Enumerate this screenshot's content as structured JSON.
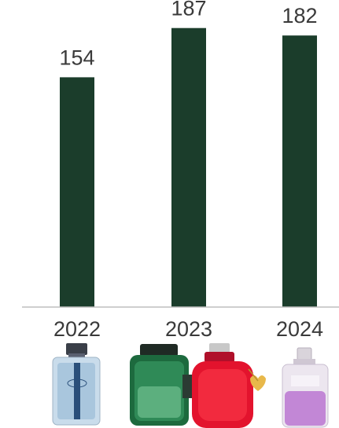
{
  "chart_data": {
    "type": "bar",
    "title": "",
    "xlabel": "",
    "ylabel": "",
    "categories": [
      "2022",
      "2023",
      "2024"
    ],
    "values": [
      154,
      187,
      182
    ],
    "ylim": [
      0,
      200
    ],
    "grid": false,
    "legend": "none",
    "bar_color": "#1b3d2b",
    "axis_color": "#bfbfbf"
  },
  "product_images": [
    {
      "year": "2022",
      "items": [
        "coach-blue-bottle-icon"
      ]
    },
    {
      "year": "2023",
      "items": [
        "coach-green-bottle-icon",
        "coach-red-bottle-icon"
      ]
    },
    {
      "year": "2024",
      "items": [
        "coach-pink-bottle-icon"
      ]
    }
  ]
}
